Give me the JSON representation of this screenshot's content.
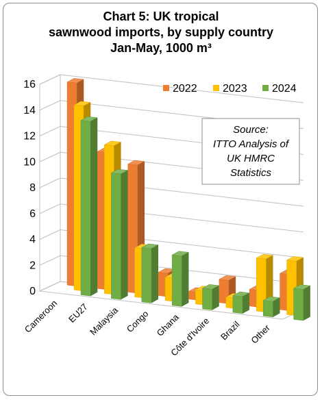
{
  "chart_data": {
    "type": "bar",
    "title_lines": [
      "Chart 5: UK tropical",
      "sawnwood imports, by supply country",
      "Jan-May, 1000 m³"
    ],
    "categories": [
      "Cameroon",
      "EU27",
      "Malaysia",
      "Congo",
      "Ghana",
      "Côte d'Ivoire",
      "Brazil",
      "Other"
    ],
    "series": [
      {
        "name": "2022",
        "color": "#ED7D31",
        "values": [
          15.7,
          10.6,
          9.9,
          1.8,
          0.6,
          1.8,
          1.3,
          2.8
        ]
      },
      {
        "name": "2023",
        "color": "#FFC000",
        "values": [
          14.3,
          11.5,
          3.8,
          1.8,
          1.1,
          0.8,
          4.1,
          4.2
        ]
      },
      {
        "name": "2024",
        "color": "#70AD47",
        "values": [
          13.5,
          9.7,
          4.2,
          3.9,
          1.6,
          1.3,
          1.2,
          2.4
        ]
      }
    ],
    "y_ticks": [
      "0",
      "2",
      "4",
      "6",
      "8",
      "10",
      "12",
      "14",
      "16"
    ],
    "ylim": [
      0,
      16
    ],
    "grid": true,
    "legend_position": "top-right",
    "annotation_lines": [
      "Source:",
      "ITTO Analysis of",
      "UK HMRC",
      "Statistics"
    ]
  }
}
